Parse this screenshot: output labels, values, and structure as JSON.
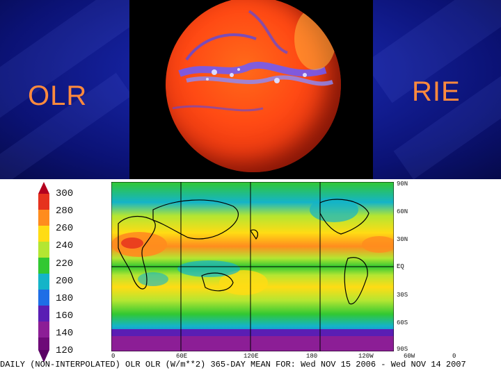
{
  "slide": {
    "left_title": "OLR",
    "right_title": "RIE"
  },
  "colorbar": {
    "levels": [
      "300",
      "280",
      "260",
      "240",
      "220",
      "200",
      "180",
      "160",
      "140",
      "120"
    ],
    "colors": [
      "#b4001e",
      "#e6321e",
      "#ff8c1e",
      "#ffdc14",
      "#b4e632",
      "#32c832",
      "#14b4c8",
      "#1e6ee6",
      "#5a1eb4",
      "#8c1e96",
      "#6e0a78"
    ]
  },
  "map": {
    "lat_labels": [
      "90N",
      "60N",
      "30N",
      "EQ",
      "30S",
      "60S",
      "90S"
    ],
    "lon_labels": [
      "0",
      "60E",
      "120E",
      "180",
      "120W",
      "60W",
      "0"
    ]
  },
  "caption": "DAILY (NON-INTERPOLATED) OLR  OLR (W/m**2) 365-DAY MEAN FOR: Wed NOV 15 2006 - Wed NOV 14 2007"
}
